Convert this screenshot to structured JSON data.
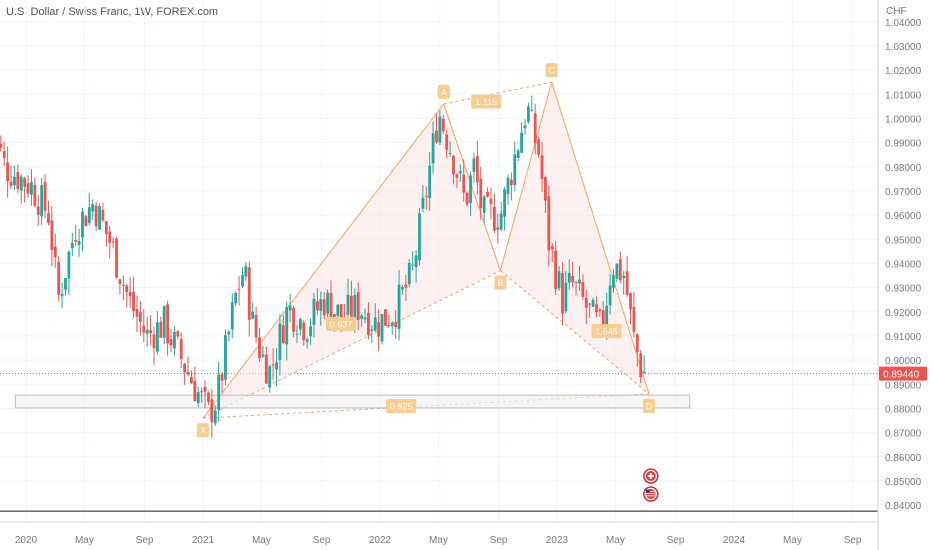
{
  "header": {
    "title": "U.S. Dollar / Swiss Franc, 1W, FOREX.com"
  },
  "chart_data": {
    "type": "candlestick",
    "title": "U.S. Dollar / Swiss Franc, 1W, FOREX.com",
    "currency_label": "CHF",
    "last_price": "0.89440",
    "ylim": [
      0.833,
      1.049
    ],
    "y_ticks": [
      "1.04000",
      "1.03000",
      "1.02000",
      "1.01000",
      "1.00000",
      "0.99000",
      "0.98000",
      "0.97000",
      "0.96000",
      "0.95000",
      "0.94000",
      "0.93000",
      "0.92000",
      "0.91000",
      "0.90000",
      "0.89000",
      "0.88000",
      "0.87000",
      "0.86000",
      "0.85000",
      "0.84000"
    ],
    "x_ticks": [
      {
        "label": "2020",
        "year": 2020.0
      },
      {
        "label": "May",
        "year": 2020.33
      },
      {
        "label": "Sep",
        "year": 2020.67
      },
      {
        "label": "2021",
        "year": 2021.0
      },
      {
        "label": "May",
        "year": 2021.33
      },
      {
        "label": "Sep",
        "year": 2021.67
      },
      {
        "label": "2022",
        "year": 2022.0
      },
      {
        "label": "May",
        "year": 2022.33
      },
      {
        "label": "Sep",
        "year": 2022.67
      },
      {
        "label": "2023",
        "year": 2023.0
      },
      {
        "label": "May",
        "year": 2023.33
      },
      {
        "label": "Sep",
        "year": 2023.67
      },
      {
        "label": "2024",
        "year": 2024.0
      },
      {
        "label": "May",
        "year": 2024.33
      },
      {
        "label": "Sep",
        "year": 2024.67
      }
    ],
    "path": [
      [
        2019.8,
        1.003
      ],
      [
        2019.9,
        0.98
      ],
      [
        2020.05,
        0.972
      ],
      [
        2020.15,
        0.96
      ],
      [
        2020.2,
        0.925
      ],
      [
        2020.3,
        0.955
      ],
      [
        2020.4,
        0.965
      ],
      [
        2020.5,
        0.948
      ],
      [
        2020.6,
        0.925
      ],
      [
        2020.7,
        0.91
      ],
      [
        2020.8,
        0.915
      ],
      [
        2020.9,
        0.9
      ],
      [
        2021.0,
        0.885
      ],
      [
        2021.05,
        0.878
      ],
      [
        2021.1,
        0.884
      ],
      [
        2021.2,
        0.925
      ],
      [
        2021.25,
        0.938
      ],
      [
        2021.3,
        0.915
      ],
      [
        2021.35,
        0.902
      ],
      [
        2021.4,
        0.895
      ],
      [
        2021.5,
        0.922
      ],
      [
        2021.6,
        0.914
      ],
      [
        2021.7,
        0.925
      ],
      [
        2021.8,
        0.918
      ],
      [
        2021.9,
        0.922
      ],
      [
        2022.0,
        0.915
      ],
      [
        2022.1,
        0.92
      ],
      [
        2022.2,
        0.935
      ],
      [
        2022.28,
        0.97
      ],
      [
        2022.35,
        1.003
      ],
      [
        2022.43,
        0.985
      ],
      [
        2022.5,
        0.965
      ],
      [
        2022.55,
        0.98
      ],
      [
        2022.6,
        0.96
      ],
      [
        2022.7,
        0.96
      ],
      [
        2022.75,
        0.975
      ],
      [
        2022.8,
        0.99
      ],
      [
        2022.85,
        1.005
      ],
      [
        2022.88,
        0.995
      ],
      [
        2022.92,
        0.985
      ],
      [
        2022.97,
        0.95
      ],
      [
        2023.05,
        0.925
      ],
      [
        2023.1,
        0.932
      ],
      [
        2023.2,
        0.92
      ],
      [
        2023.27,
        0.912
      ],
      [
        2023.33,
        0.94
      ],
      [
        2023.4,
        0.935
      ],
      [
        2023.45,
        0.91
      ],
      [
        2023.5,
        0.895
      ]
    ],
    "harmonic_pattern": {
      "points": [
        {
          "label": "X",
          "year": 2021.0,
          "price": 0.876
        },
        {
          "label": "A",
          "year": 2022.36,
          "price": 1.006
        },
        {
          "label": "B",
          "year": 2022.68,
          "price": 0.937
        },
        {
          "label": "C",
          "year": 2022.97,
          "price": 1.015
        },
        {
          "label": "D",
          "year": 2023.52,
          "price": 0.886
        }
      ],
      "ratios": [
        {
          "label": "0.637",
          "year": 2021.78,
          "price": 0.915
        },
        {
          "label": "1.115",
          "year": 2022.6,
          "price": 1.007
        },
        {
          "label": "1.645",
          "year": 2023.28,
          "price": 0.912
        },
        {
          "label": "0.925",
          "year": 2022.12,
          "price": 0.881
        }
      ],
      "prz_box": {
        "year_from": 2019.94,
        "year_to": 2023.75,
        "price_top": 0.8855,
        "price_bottom": 0.8802
      }
    },
    "horizontal_line": 0.8375,
    "colors": {
      "up": "#26a69a",
      "down": "#ef5350",
      "pattern_stroke": "#f7a35c",
      "pattern_fill": "#fce4e4",
      "label_bg": "#f9cc8f",
      "last_price_bg": "#ef5350"
    }
  }
}
